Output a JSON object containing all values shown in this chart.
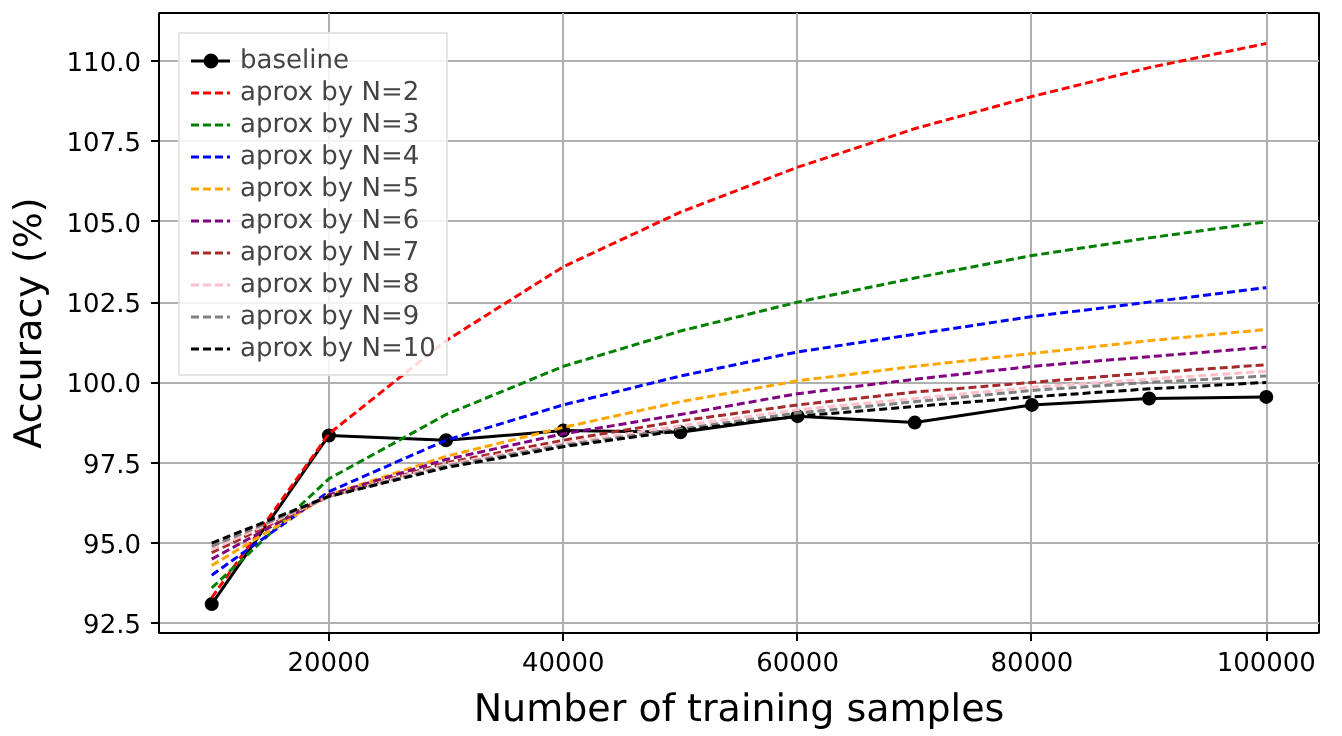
{
  "chart_data": {
    "type": "line",
    "xlabel": "Number of training samples",
    "ylabel": "Accuracy (%)",
    "x": [
      10000,
      20000,
      30000,
      40000,
      50000,
      60000,
      70000,
      80000,
      90000,
      100000
    ],
    "xlim": [
      5500,
      104500
    ],
    "ylim": [
      92.2,
      111.5
    ],
    "xticks": [
      20000,
      40000,
      60000,
      80000,
      100000
    ],
    "yticks": [
      92.5,
      {
        "value": 95,
        "label": "95.0"
      },
      97.5,
      {
        "value": 100,
        "label": "100.0"
      },
      102.5,
      {
        "value": 105,
        "label": "105.0"
      },
      107.5,
      {
        "value": 110,
        "label": "110.0"
      }
    ],
    "grid": true,
    "legend": "top left",
    "series": [
      {
        "name": "baseline",
        "color": "#000000",
        "line_style": "solid",
        "marker": "circle",
        "values": [
          93.1,
          98.35,
          98.2,
          98.5,
          98.45,
          98.95,
          98.75,
          99.3,
          99.5,
          99.55
        ]
      },
      {
        "name": "aprox by N=2",
        "color": "#ff0000",
        "line_style": "dashed",
        "marker": "none",
        "values": [
          93.3,
          98.4,
          101.3,
          103.6,
          105.3,
          106.7,
          107.9,
          108.9,
          109.8,
          110.55
        ]
      },
      {
        "name": "aprox by N=3",
        "color": "#008000",
        "line_style": "dashed",
        "marker": "none",
        "values": [
          93.6,
          97.0,
          99.0,
          100.5,
          101.6,
          102.5,
          103.25,
          103.95,
          104.5,
          105.0
        ]
      },
      {
        "name": "aprox by N=4",
        "color": "#0000ff",
        "line_style": "dashed",
        "marker": "none",
        "values": [
          94.0,
          96.6,
          98.2,
          99.3,
          100.2,
          100.95,
          101.5,
          102.05,
          102.5,
          102.95
        ]
      },
      {
        "name": "aprox by N=5",
        "color": "#ffa500",
        "line_style": "dashed",
        "marker": "none",
        "values": [
          94.3,
          96.5,
          97.7,
          98.6,
          99.4,
          100.05,
          100.5,
          100.9,
          101.3,
          101.65
        ]
      },
      {
        "name": "aprox by N=6",
        "color": "#800080",
        "line_style": "dashed",
        "marker": "none",
        "values": [
          94.5,
          96.5,
          97.6,
          98.4,
          99.0,
          99.65,
          100.1,
          100.5,
          100.8,
          101.1
        ]
      },
      {
        "name": "aprox by N=7",
        "color": "#a52a2a",
        "line_style": "dashed",
        "marker": "none",
        "values": [
          94.7,
          96.45,
          97.5,
          98.2,
          98.8,
          99.3,
          99.7,
          100.0,
          100.3,
          100.55
        ]
      },
      {
        "name": "aprox by N=8",
        "color": "#ffc0cb",
        "line_style": "dashed",
        "marker": "none",
        "values": [
          94.8,
          96.45,
          97.45,
          98.1,
          98.65,
          99.15,
          99.5,
          99.85,
          100.1,
          100.35
        ]
      },
      {
        "name": "aprox by N=9",
        "color": "#808080",
        "line_style": "dashed",
        "marker": "none",
        "values": [
          94.9,
          96.45,
          97.4,
          98.05,
          98.55,
          99.05,
          99.4,
          99.75,
          100.0,
          100.2
        ]
      },
      {
        "name": "aprox by N=10",
        "color": "#000000",
        "line_style": "dashed",
        "marker": "none",
        "values": [
          95.0,
          96.45,
          97.35,
          98.0,
          98.5,
          98.95,
          99.25,
          99.55,
          99.8,
          100.0
        ]
      }
    ]
  }
}
